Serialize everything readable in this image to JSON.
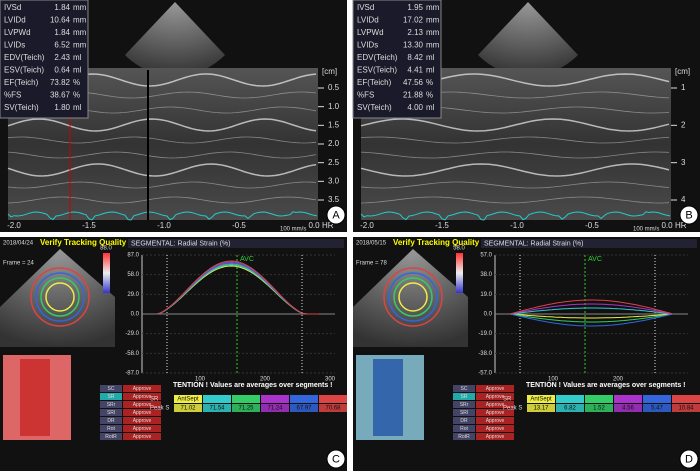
{
  "panels": [
    {
      "letter": "A",
      "measurements": [
        {
          "name": "IVSd",
          "value": "1.84",
          "unit": "mm"
        },
        {
          "name": "LVIDd",
          "value": "10.64",
          "unit": "mm"
        },
        {
          "name": "LVPWd",
          "value": "1.84",
          "unit": "mm"
        },
        {
          "name": "LVIDs",
          "value": "6.52",
          "unit": "mm"
        },
        {
          "name": "EDV(Teich)",
          "value": "2.43",
          "unit": "ml"
        },
        {
          "name": "ESV(Teich)",
          "value": "0.64",
          "unit": "ml"
        },
        {
          "name": "EF(Teich)",
          "value": "73.82",
          "unit": "%"
        },
        {
          "name": "%FS",
          "value": "38.67",
          "unit": "%"
        },
        {
          "name": "SV(Teich)",
          "value": "1.80",
          "unit": "ml"
        }
      ],
      "depth_unit": "[cm]",
      "depth_ticks": [
        "0.5",
        "1.0",
        "1.5",
        "2.0",
        "2.5",
        "3.0",
        "3.5"
      ],
      "time_ticks": [
        "-2.0",
        "-1.5",
        "-1.0",
        "-0.5",
        "0.0"
      ],
      "speed": "100 mm/s",
      "hr": "HR"
    },
    {
      "letter": "B",
      "measurements": [
        {
          "name": "IVSd",
          "value": "1.95",
          "unit": "mm"
        },
        {
          "name": "LVIDd",
          "value": "17.02",
          "unit": "mm"
        },
        {
          "name": "LVPWd",
          "value": "2.13",
          "unit": "mm"
        },
        {
          "name": "LVIDs",
          "value": "13.30",
          "unit": "mm"
        },
        {
          "name": "EDV(Teich)",
          "value": "8.42",
          "unit": "ml"
        },
        {
          "name": "ESV(Teich)",
          "value": "4.41",
          "unit": "ml"
        },
        {
          "name": "EF(Teich)",
          "value": "47.56",
          "unit": "%"
        },
        {
          "name": "%FS",
          "value": "21.88",
          "unit": "%"
        },
        {
          "name": "SV(Teich)",
          "value": "4.00",
          "unit": "ml"
        }
      ],
      "depth_unit": "[cm]",
      "depth_ticks": [
        "1",
        "2",
        "3",
        "4"
      ],
      "time_ticks": [
        "-2.0",
        "-1.5",
        "-1.0",
        "-0.5",
        "0.0"
      ],
      "speed": "100 mm/s",
      "hr": "HR"
    }
  ],
  "strain_panels": [
    {
      "letter": "C",
      "date": "2018/04/24",
      "banner": "Verify Tracking Quality",
      "frame": "Frame = 24",
      "colorbar_max": "88.0",
      "title": "SEGMENTAL: Radial Strain (%)",
      "yticks": [
        "87.0",
        "58.0",
        "29.0",
        "0.0",
        "-29.0",
        "-58.0",
        "-87.0"
      ],
      "xticks": [
        "100",
        "200",
        "300"
      ],
      "event": "AVC",
      "modes": [
        "SC",
        "SR",
        "SRr",
        "SRl",
        "DR",
        "Rot",
        "RotR"
      ],
      "status": "Approve",
      "note": "TENTION !  Values are averages over segments !",
      "row_labels": [
        "SR",
        "Peak S"
      ],
      "first_segment": "AntSept",
      "peaks": [
        "71.02",
        "71.54",
        "71.25",
        "71.24",
        "67.97",
        "70.68"
      ]
    },
    {
      "letter": "D",
      "date": "2018/05/15",
      "banner": "Verify Tracking Quality",
      "frame": "Frame = 78",
      "colorbar_max": "58.0",
      "title": "SEGMENTAL: Radial Strain (%)",
      "yticks": [
        "57.0",
        "38.0",
        "19.0",
        "0.0",
        "-19.0",
        "-38.0",
        "-57.0"
      ],
      "xticks": [
        "100",
        "200"
      ],
      "event": "AVC",
      "modes": [
        "SC",
        "SR",
        "SRr",
        "SRl",
        "DR",
        "Rot",
        "RotR"
      ],
      "status": "Approve",
      "note": "TENTION !  Values are averages over segments !",
      "row_labels": [
        "SR",
        "Peak S"
      ],
      "first_segment": "AntSept",
      "peaks": [
        "13.17",
        "6.82",
        "1.52",
        "4.56",
        "5.47",
        "10.84"
      ]
    }
  ]
}
